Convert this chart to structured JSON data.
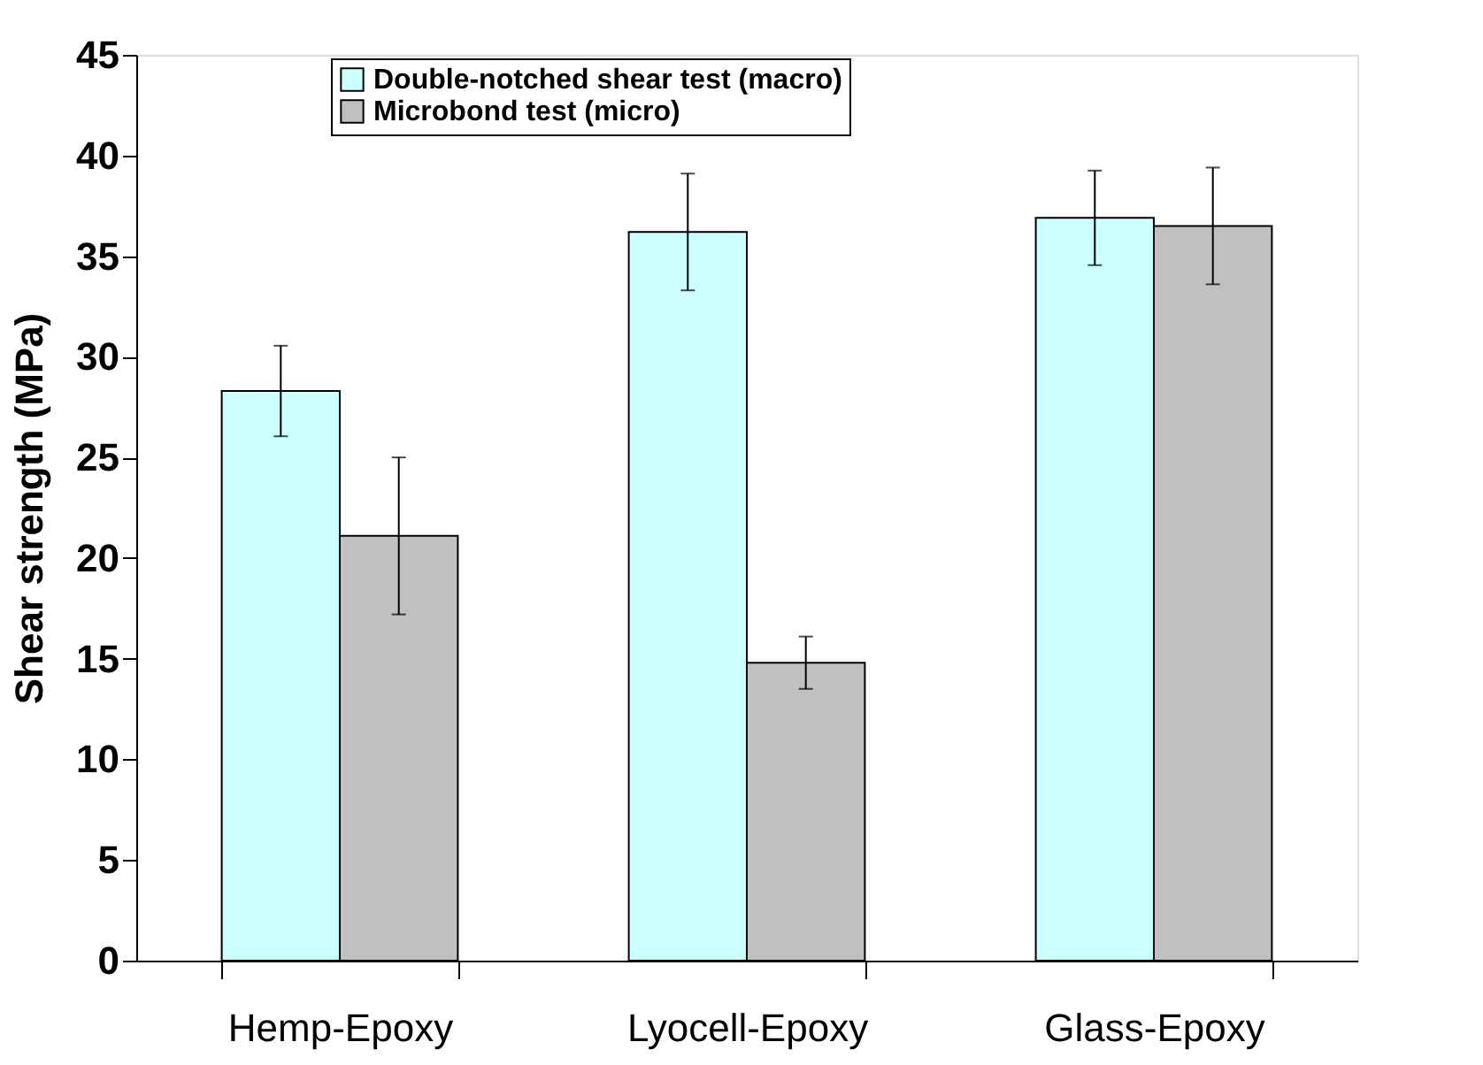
{
  "chart_data": {
    "type": "bar",
    "ylabel": "Shear strength (MPa)",
    "categories": [
      "Hemp-Epoxy",
      "Lyocell-Epoxy",
      "Glass-Epoxy"
    ],
    "series": [
      {
        "name": "Double-notched shear test (macro)",
        "color": "#ccffff",
        "values": [
          28.3,
          36.2,
          36.9
        ],
        "errors": [
          2.25,
          2.9,
          2.35
        ]
      },
      {
        "name": "Microbond test (micro)",
        "color": "#c0c0c0",
        "values": [
          21.1,
          14.8,
          36.5
        ],
        "errors": [
          3.9,
          1.3,
          2.9
        ]
      }
    ],
    "ylim": [
      0,
      45
    ],
    "yticks": [
      0,
      5,
      10,
      15,
      20,
      25,
      30,
      35,
      40,
      45
    ],
    "grid": false,
    "legend": "top"
  }
}
